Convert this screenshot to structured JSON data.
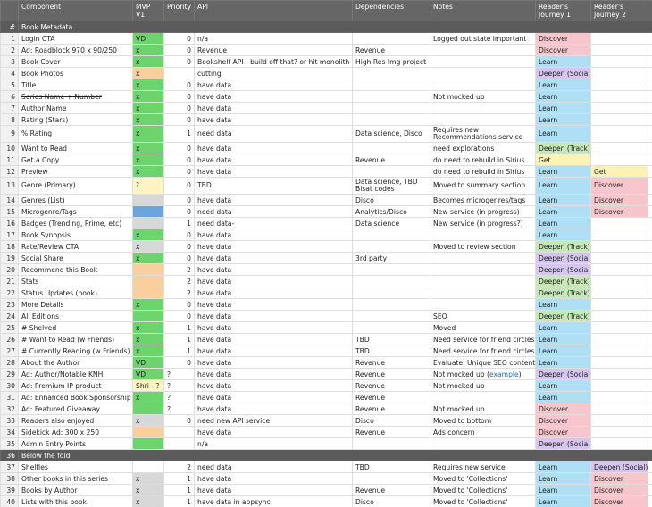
{
  "header": {
    "num": "#",
    "columns": [
      "Component",
      "MVP V1",
      "Priority",
      "API",
      "Dependencies",
      "Notes",
      "Reader's Journey 1",
      "Reader's Journey 2"
    ]
  },
  "journey_colors": {
    "Discover": "#f6c6cc",
    "Learn": "#aedff5",
    "Deepen (Social)": "#d6c5ee",
    "Deepen (Track)": "#c6e8b8",
    "Get": "#fbf3b5"
  },
  "rows": [
    {
      "n": "#",
      "section": "Book Metadata"
    },
    {
      "n": 1,
      "component": "Login CTA",
      "mvp": "VD",
      "mvp_color": "#6dd36d",
      "priority": 0,
      "api": "n/a",
      "notes": "Logged out state important",
      "rj1": "Discover"
    },
    {
      "n": 2,
      "component": "Ad: Roadblock 970 x 90/250",
      "mvp": "x",
      "mvp_color": "#6dd36d",
      "priority": 0,
      "api": "Revenue",
      "deps": "Revenue",
      "rj1": "Discover"
    },
    {
      "n": 3,
      "component": "Book Cover",
      "mvp": "x",
      "mvp_color": "#6dd36d",
      "priority": 0,
      "api": "Bookshelf API - build off that? or hit monolith",
      "deps": "High Res Img project",
      "rj1": "Learn"
    },
    {
      "n": 4,
      "component": "Book Photos",
      "mvp": "x",
      "mvp_color": "#f9cf9e",
      "api": "cutting",
      "rj1": "Deepen (Social)"
    },
    {
      "n": 5,
      "component": "Title",
      "mvp": "x",
      "mvp_color": "#6dd36d",
      "priority": 0,
      "api": "have data",
      "rj1": "Learn"
    },
    {
      "n": 6,
      "component": "Series Name + Number",
      "strike": true,
      "mvp": "x",
      "mvp_color": "#6dd36d",
      "priority": 0,
      "api": "have data",
      "notes": "Not mocked up",
      "rj1": "Learn"
    },
    {
      "n": 7,
      "component": "Author Name",
      "mvp": "x",
      "mvp_color": "#6dd36d",
      "priority": 0,
      "api": "have data",
      "rj1": "Learn"
    },
    {
      "n": 8,
      "component": "Rating (Stars)",
      "mvp": "x",
      "mvp_color": "#6dd36d",
      "priority": 0,
      "api": "have data",
      "rj1": "Learn"
    },
    {
      "n": 9,
      "tall": true,
      "component": "% Rating",
      "mvp": "x",
      "mvp_color": "#6dd36d",
      "priority": 1,
      "api": "need data",
      "deps": "Data science, Disco",
      "notes": "Requires new Recommendations service",
      "rj1": "Learn"
    },
    {
      "n": 10,
      "component": "Want to Read",
      "mvp": "x",
      "mvp_color": "#6dd36d",
      "priority": 0,
      "api": "have data",
      "notes": "need explorations",
      "rj1": "Deepen (Track)"
    },
    {
      "n": 11,
      "component": "Get a Copy",
      "mvp": "x",
      "mvp_color": "#6dd36d",
      "priority": 0,
      "api": "have data",
      "deps": "Revenue",
      "notes": "do need to rebuild in Sirius",
      "rj1": "Get"
    },
    {
      "n": 12,
      "component": "Preview",
      "mvp": "x",
      "mvp_color": "#6dd36d",
      "priority": 0,
      "api": "have data",
      "notes": "do need to rebuild in Sirius",
      "rj1": "Learn",
      "rj2": "Get"
    },
    {
      "n": 13,
      "tall": true,
      "component": "Genre (Primary)",
      "mvp": "?",
      "mvp_color": "#fff4c4",
      "priority": 0,
      "api": "TBD",
      "deps": "Data science, TBD Bisat codes",
      "notes": "Moved to summary section",
      "rj1": "Learn",
      "rj2": "Discover"
    },
    {
      "n": 14,
      "component": "Genres (List)",
      "mvp_color": "#d8d8d8",
      "priority": 0,
      "api": "have data",
      "deps": "Disco",
      "notes": "Becomes microgenres/tags",
      "rj1": "Learn",
      "rj2": "Discover"
    },
    {
      "n": 15,
      "component": "Microgenre/Tags",
      "mvp_color": "#6aa5dd",
      "priority": 0,
      "api": "need data",
      "deps": "Analytics/Disco",
      "notes": "New service (in progress)",
      "rj1": "Learn",
      "rj2": "Discover"
    },
    {
      "n": 16,
      "component": "Badges (Trending, Prime, etc)",
      "mvp_color": "#d8d8d8",
      "priority": 1,
      "api": "need data-",
      "deps": "Data science",
      "notes": "New service (in progress?)",
      "rj1": "Learn"
    },
    {
      "n": 17,
      "component": "Book Synopsis",
      "mvp": "x",
      "mvp_color": "#6dd36d",
      "priority": 0,
      "api": "have data",
      "rj1": "Learn"
    },
    {
      "n": 18,
      "component": "Rate/Review CTA",
      "mvp": "x",
      "mvp_color": "#d8d8d8",
      "priority": 0,
      "api": "have data",
      "notes": "Moved to review section",
      "rj1": "Deepen (Track)"
    },
    {
      "n": 19,
      "component": "Social Share",
      "mvp": "x",
      "mvp_color": "#6dd36d",
      "priority": 0,
      "api": "have data",
      "deps": "3rd party",
      "rj1": "Deepen (Social)"
    },
    {
      "n": 20,
      "component": "Recommend this Book",
      "mvp_color": "#f9cf9e",
      "priority": 2,
      "api": "have data",
      "rj1": "Deepen (Social)"
    },
    {
      "n": 21,
      "component": "Stats",
      "mvp_color": "#f9cf9e",
      "priority": 2,
      "api": "have data",
      "rj1": "Deepen (Track)"
    },
    {
      "n": 22,
      "component": "Status Updates (book)",
      "mvp_color": "#f9cf9e",
      "priority": 2,
      "api": "have data",
      "rj1": "Deepen (Track)"
    },
    {
      "n": 23,
      "component": "More Details",
      "mvp": "x",
      "mvp_color": "#6dd36d",
      "priority": 0,
      "api": "have data",
      "rj1": "Learn"
    },
    {
      "n": 24,
      "component": "All Editions",
      "mvp_color": "#6dd36d",
      "priority": 0,
      "api": "have data",
      "notes": "SEO",
      "rj1": "Deepen (Track)"
    },
    {
      "n": 25,
      "component": "# Shelved",
      "mvp": "x",
      "mvp_color": "#6dd36d",
      "priority": 1,
      "api": "have data",
      "notes": "Moved",
      "rj1": "Learn"
    },
    {
      "n": 26,
      "component": "# Want to Read (w Friends)",
      "mvp": "x",
      "mvp_color": "#6dd36d",
      "priority": 1,
      "api": "have data",
      "deps": "TBD",
      "notes": "Need service for friend circles",
      "rj1": "Learn"
    },
    {
      "n": 27,
      "component": "# Currently Reading (w Friends)",
      "mvp": "x",
      "mvp_color": "#6dd36d",
      "priority": 1,
      "api": "have data",
      "deps": "TBD",
      "notes": "Need service for friend circles",
      "rj1": "Learn"
    },
    {
      "n": 28,
      "component": "About the Author",
      "mvp": "VD",
      "mvp_color": "#6dd36d",
      "priority": 0,
      "api": "have data",
      "deps": "Revenue",
      "notes": "Evaluate. Unique SEO content?",
      "rj1": "Learn"
    },
    {
      "n": 29,
      "component": "Ad: Author/Notable KNH",
      "mvp": "VD",
      "mvp_color": "#6dd36d",
      "priority": "?",
      "api": "have data",
      "deps": "Revenue",
      "notes": "Not mocked up (",
      "notes_link": "example",
      "notes_after": ")",
      "rj1": "Deepen (Social)"
    },
    {
      "n": 30,
      "component": "Ad: Premium IP product",
      "mvp": "Shri - ?",
      "mvp_color": "#fff4c4",
      "priority": "?",
      "api": "have data",
      "deps": "Revenue",
      "notes": "Not mocked up",
      "rj1": "Learn"
    },
    {
      "n": 31,
      "component": "Ad: Enhanced Book Sponsorship",
      "mvp": "x",
      "mvp_color": "#6dd36d",
      "priority": "?",
      "api": "have data",
      "deps": "Revenue",
      "rj1": "Learn"
    },
    {
      "n": 32,
      "component": "Ad: Featured Giveaway",
      "mvp_color": "#6dd36d",
      "priority": "?",
      "api": "have data",
      "deps": "Revenue",
      "notes": "Not mocked up",
      "rj1": "Discover"
    },
    {
      "n": 33,
      "component": "Readers also enjoyed",
      "mvp": "x",
      "mvp_color": "#d8d8d8",
      "priority": 0,
      "api": "need new API service",
      "deps": "Disco",
      "notes": "Moved to bottom",
      "rj1": "Discover"
    },
    {
      "n": 34,
      "component": "Sidekick Ad: 300 x 250",
      "mvp_color": "#f9cf9e",
      "api": "have data",
      "deps": "Revenue",
      "notes": "Ads concern",
      "rj1": "Discover"
    },
    {
      "n": 35,
      "component": "Admin Entry Points",
      "mvp_color": "#6dd36d",
      "api": "n/a",
      "rj1": "Deepen (Social)"
    },
    {
      "n": 36,
      "section": "Below the fold"
    },
    {
      "n": 37,
      "component": "Shelfies",
      "priority": 2,
      "api": "need data",
      "deps": "TBD",
      "notes": "Requires new service",
      "rj1": "Learn",
      "rj2": "Deepen (Social)"
    },
    {
      "n": 38,
      "component": "Other books in this series",
      "mvp": "x",
      "mvp_color": "#d8d8d8",
      "priority": 1,
      "api": "have data",
      "notes": "Moved to 'Collections'",
      "rj1": "Learn",
      "rj2": "Discover"
    },
    {
      "n": 39,
      "component": "Books by Author",
      "mvp": "x",
      "mvp_color": "#d8d8d8",
      "priority": 1,
      "api": "have data",
      "deps": "Revenue",
      "notes": "Moved to 'Collections'",
      "rj1": "Learn",
      "rj2": "Discover"
    },
    {
      "n": 40,
      "component": "Lists with this book",
      "mvp": "x",
      "mvp_color": "#d8d8d8",
      "priority": 1,
      "api": "have data in appsync",
      "deps": "Disco",
      "notes": "Moved to 'Collections'",
      "rj1": "Learn",
      "rj2": "Discover"
    }
  ]
}
